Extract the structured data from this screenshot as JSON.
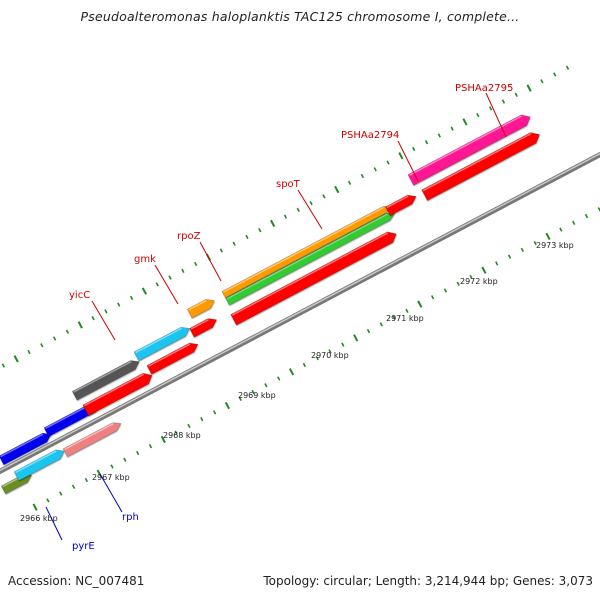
{
  "title": "Pseudoalteromonas haloplanktis TAC125 chromosome I, complete...",
  "footer": {
    "accession": "Accession: NC_007481",
    "topology": "Topology: circular; Length: 3,214,944 bp; Genes: 3,073"
  },
  "scale_labels": [
    "2966 kbp",
    "2967 kbp",
    "2968 kbp",
    "2969 kbp",
    "2970 kbp",
    "2971 kbp",
    "2972 kbp",
    "2973 kbp"
  ],
  "gene_labels": {
    "yicC": "yicC",
    "gmk": "gmk",
    "rpoZ": "rpoZ",
    "spoT": "spoT",
    "PSHAa2794": "PSHAa2794",
    "PSHAa2795": "PSHAa2795",
    "pyrE": "pyrE",
    "rph": "rph"
  },
  "colors": {
    "backbone": "#8a8a8a",
    "tick": "#1f8a1f",
    "label_red": "#cc0000",
    "label_blue": "#0000cc",
    "gene_red": "#ff0000",
    "gene_blue": "#0000ee",
    "gene_cyan": "#1ec4f0",
    "gene_pink": "#f08080",
    "gene_olive": "#6b8e23",
    "gene_gray": "#555555",
    "gene_orange": "#ff9900",
    "gene_green": "#33cc33",
    "gene_magenta": "#ff1493"
  }
}
